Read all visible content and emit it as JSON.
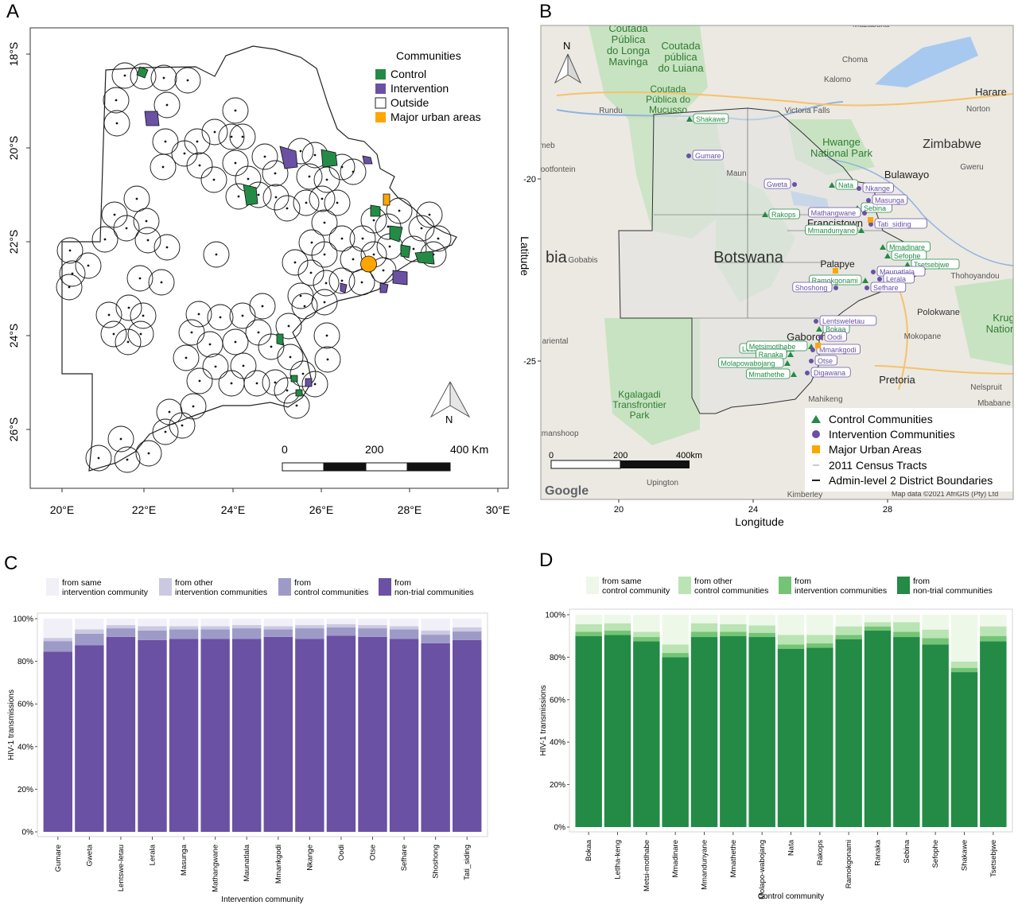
{
  "panels": {
    "A": {
      "letter": "A",
      "x_ticks": [
        "20°E",
        "22°E",
        "24°E",
        "26°E",
        "28°E",
        "30°E"
      ],
      "y_ticks": [
        "18°S",
        "20°S",
        "22°S",
        "24°S",
        "26°S"
      ],
      "legend_title": "Communities",
      "legend": [
        {
          "label": "Control",
          "color": "#238b45"
        },
        {
          "label": "Intervention",
          "color": "#6a51a3"
        },
        {
          "label": "Outside",
          "color": "#ffffff"
        },
        {
          "label": "Major urban areas",
          "color": "#ffa500"
        }
      ],
      "north": "N",
      "scalebar": [
        "0",
        "200",
        "400 Km"
      ]
    },
    "B": {
      "letter": "B",
      "xlabel": "Longitude",
      "ylabel": "Latitude",
      "x_ticks": [
        "20",
        "24",
        "28"
      ],
      "y_ticks": [
        "-20",
        "-25"
      ],
      "north": "N",
      "scalebar": [
        "0",
        "200",
        "400km"
      ],
      "google": "Google",
      "attribution": "Map data ©2021 AfriGIS (Pty) Ltd",
      "place_labels": [
        {
          "text": "Coutada Pública do Longa Mavinga",
          "lines": [
            "Coutada",
            "Pública",
            "do Longa",
            "Mavinga"
          ]
        },
        {
          "text": "Coutada pública do Luiana",
          "lines": [
            "Coutada",
            "pública",
            "do Luiana"
          ]
        },
        {
          "text": "Coutada Pública do Mucusso",
          "lines": [
            "Coutada",
            "Pública do",
            "Mucusso"
          ]
        },
        {
          "text": "Mazabuka",
          "lines": [
            "Mazabuka"
          ]
        },
        {
          "text": "Choma",
          "lines": [
            "Choma"
          ]
        },
        {
          "text": "Kalomo",
          "lines": [
            "Kalomo"
          ]
        },
        {
          "text": "Harare",
          "lines": [
            "Harare"
          ]
        },
        {
          "text": "Norton",
          "lines": [
            "Norton"
          ]
        },
        {
          "text": "Victoria Falls",
          "lines": [
            "Victoria Falls"
          ]
        },
        {
          "text": "Rundu",
          "lines": [
            "Rundu"
          ]
        },
        {
          "text": "Hwange National Park",
          "lines": [
            "Hwange",
            "National Park"
          ]
        },
        {
          "text": "Zimbabwe",
          "lines": [
            "Zimbabwe"
          ]
        },
        {
          "text": "Gweru",
          "lines": [
            "Gweru"
          ]
        },
        {
          "text": "Bulawayo",
          "lines": [
            "Bulawayo"
          ]
        },
        {
          "text": "Maun",
          "lines": [
            "Maun"
          ]
        },
        {
          "text": "Francistown",
          "lines": [
            "Francistown"
          ]
        },
        {
          "text": "Botswana",
          "lines": [
            "Botswana"
          ]
        },
        {
          "text": "Palapye",
          "lines": [
            "Palapye"
          ]
        },
        {
          "text": "Gobabis",
          "lines": [
            "Gobabis"
          ]
        },
        {
          "text": "Thohoyandou",
          "lines": [
            "Thohoyandou"
          ]
        },
        {
          "text": "Polokwane",
          "lines": [
            "Polokwane"
          ]
        },
        {
          "text": "Mokopane",
          "lines": [
            "Mokopane"
          ]
        },
        {
          "text": "Kruger National",
          "lines": [
            "Krug",
            "Nationa"
          ]
        },
        {
          "text": "Gaborone",
          "lines": [
            "Gaborone"
          ]
        },
        {
          "text": "Mahikeng",
          "lines": [
            "Mahikeng"
          ]
        },
        {
          "text": "Pretoria",
          "lines": [
            "Pretoria"
          ]
        },
        {
          "text": "Nelspruit",
          "lines": [
            "Nelspruit"
          ]
        },
        {
          "text": "Mbabane",
          "lines": [
            "Mbabane"
          ]
        },
        {
          "text": "Kgalagadi Transfrontier Park",
          "lines": [
            "Kgalagadi",
            "Transfrontier",
            "Park"
          ]
        },
        {
          "text": "Upington",
          "lines": [
            "Upington"
          ]
        },
        {
          "text": "Kimberley",
          "lines": [
            "Kimberley"
          ]
        },
        {
          "text": "Mariental",
          "lines": [
            "ariental"
          ]
        },
        {
          "text": "Keetmanshoop",
          "lines": [
            "etmanshoop"
          ]
        },
        {
          "text": "Grootfontein",
          "lines": [
            "rootfontein"
          ]
        },
        {
          "text": "Otjiwarongo",
          "lines": [
            "meb"
          ]
        },
        {
          "text": "Namibia",
          "lines": [
            "bia"
          ]
        }
      ],
      "control_labels": [
        "Shakawe",
        "Nata",
        "Rakops",
        "Sebina",
        "Mmandunyane",
        "Mmadinare",
        "Sefophe",
        "Tsetsebjwe",
        "Ramokgonami",
        "Letlhakeng",
        "Bokaa",
        "Metsimotlhabe",
        "Ranaka",
        "Molapowabojang",
        "Mmathethe"
      ],
      "intervention_labels": [
        "Gumare",
        "Gweta",
        "Nkange",
        "Masunga",
        "Mathangwane",
        "Tati_siding",
        "Maunatlala",
        "Lerala",
        "Shoshong",
        "Sefhare",
        "Lentsweletau",
        "Oodi",
        "Mmankgodi",
        "Otse",
        "Digawana"
      ],
      "legend": [
        {
          "label": "Control Communities",
          "symbol": "triangle",
          "color": "#238b45"
        },
        {
          "label": "Intervention Communities",
          "symbol": "circle",
          "color": "#6a51a3"
        },
        {
          "label": "Major Urban Areas",
          "symbol": "square",
          "color": "#ffa500"
        },
        {
          "label": "2011 Census Tracts",
          "symbol": "thin-line",
          "color": "#999999"
        },
        {
          "label": "Admin-level 2 District Boundaries",
          "symbol": "line",
          "color": "#333333"
        }
      ]
    },
    "C": {
      "letter": "C"
    },
    "D": {
      "letter": "D"
    }
  },
  "chart_data": [
    {
      "type": "bar",
      "stacked": true,
      "panel": "C",
      "xlabel": "Intervention community",
      "ylabel": "HIV-1 transmissions",
      "ylim": [
        0,
        100
      ],
      "y_ticks": [
        "0%",
        "20%",
        "40%",
        "60%",
        "80%",
        "100%"
      ],
      "legend_position": "top",
      "categories": [
        "Gumare",
        "Gweta",
        "Lentswe-letau",
        "Lerala",
        "Masunga",
        "Mathangwane",
        "Maunatlala",
        "Mmankgodi",
        "Nkange",
        "Oodi",
        "Otse",
        "Sefhare",
        "Shoshong",
        "Tati_siding"
      ],
      "series": [
        {
          "name": "from non-trial communities",
          "color": "#6a51a3",
          "values": [
            84.5,
            87.5,
            91.5,
            90,
            90.5,
            90.5,
            90.5,
            91.5,
            90.5,
            92,
            91.5,
            90.5,
            88.5,
            90
          ]
        },
        {
          "name": "from control communities",
          "color": "#9e9ac8",
          "values": [
            5,
            5.5,
            4,
            4.5,
            4.5,
            4.5,
            5,
            3.5,
            5,
            4,
            4,
            4.5,
            4,
            4
          ]
        },
        {
          "name": "from other intervention communities",
          "color": "#cbc9e2",
          "values": [
            1.5,
            2,
            1.5,
            2,
            1.5,
            1.5,
            1.5,
            1.5,
            1.5,
            1.5,
            1.5,
            1.5,
            2,
            2
          ]
        },
        {
          "name": "from same intervention community",
          "color": "#f2f0f7",
          "values": [
            9,
            5,
            3,
            3.5,
            3.5,
            3.5,
            3,
            3.5,
            3,
            2.5,
            3,
            3.5,
            5.5,
            4
          ]
        }
      ],
      "legend": [
        {
          "lines": [
            "from same",
            "intervention community"
          ],
          "color": "#f2f0f7"
        },
        {
          "lines": [
            "from other",
            "intervention communities"
          ],
          "color": "#cbc9e2"
        },
        {
          "lines": [
            "from",
            "control communities"
          ],
          "color": "#9e9ac8"
        },
        {
          "lines": [
            "from",
            "non-trial communities"
          ],
          "color": "#6a51a3"
        }
      ]
    },
    {
      "type": "bar",
      "stacked": true,
      "panel": "D",
      "xlabel": "Control community",
      "ylabel": "HIV-1 transmissions",
      "ylim": [
        0,
        100
      ],
      "y_ticks": [
        "0%",
        "20%",
        "40%",
        "60%",
        "80%",
        "100%"
      ],
      "legend_position": "top",
      "categories": [
        "Bokaa",
        "Letlha-keng",
        "Metsi-motlhabe",
        "Mmadinare",
        "Mmandunyane",
        "Mmathethe",
        "Molapo-wabojang",
        "Nata",
        "Rakops",
        "Ramokgonami",
        "Ranaka",
        "Sebina",
        "Sefophe",
        "Shakawe",
        "Tsetsebjwe"
      ],
      "series": [
        {
          "name": "from non-trial communities",
          "color": "#238b45",
          "values": [
            90,
            90.5,
            87.5,
            80,
            89.5,
            90,
            89.5,
            84,
            84.5,
            88.5,
            92.5,
            89.5,
            86,
            73,
            87.5
          ]
        },
        {
          "name": "from intervention communities",
          "color": "#74c476",
          "values": [
            2,
            2,
            2,
            2,
            2.5,
            2,
            2,
            2,
            2,
            2,
            2,
            2.5,
            3,
            2,
            2.5
          ]
        },
        {
          "name": "from other control communities",
          "color": "#bae4b3",
          "values": [
            3.5,
            3.5,
            2.5,
            4,
            4,
            3.5,
            3.5,
            4.5,
            4,
            4,
            2,
            4.5,
            4,
            3,
            4.5
          ]
        },
        {
          "name": "from same control community",
          "color": "#edf8e9",
          "values": [
            4.5,
            4,
            8,
            14,
            4,
            4.5,
            5,
            9.5,
            9.5,
            5.5,
            3.5,
            3.5,
            7,
            22,
            5.5
          ]
        }
      ],
      "legend": [
        {
          "lines": [
            "from same",
            "control community"
          ],
          "color": "#edf8e9"
        },
        {
          "lines": [
            "from other",
            "control communities"
          ],
          "color": "#bae4b3"
        },
        {
          "lines": [
            "from",
            "intervention communities"
          ],
          "color": "#74c476"
        },
        {
          "lines": [
            "from",
            "non-trial communities"
          ],
          "color": "#238b45"
        }
      ]
    }
  ]
}
